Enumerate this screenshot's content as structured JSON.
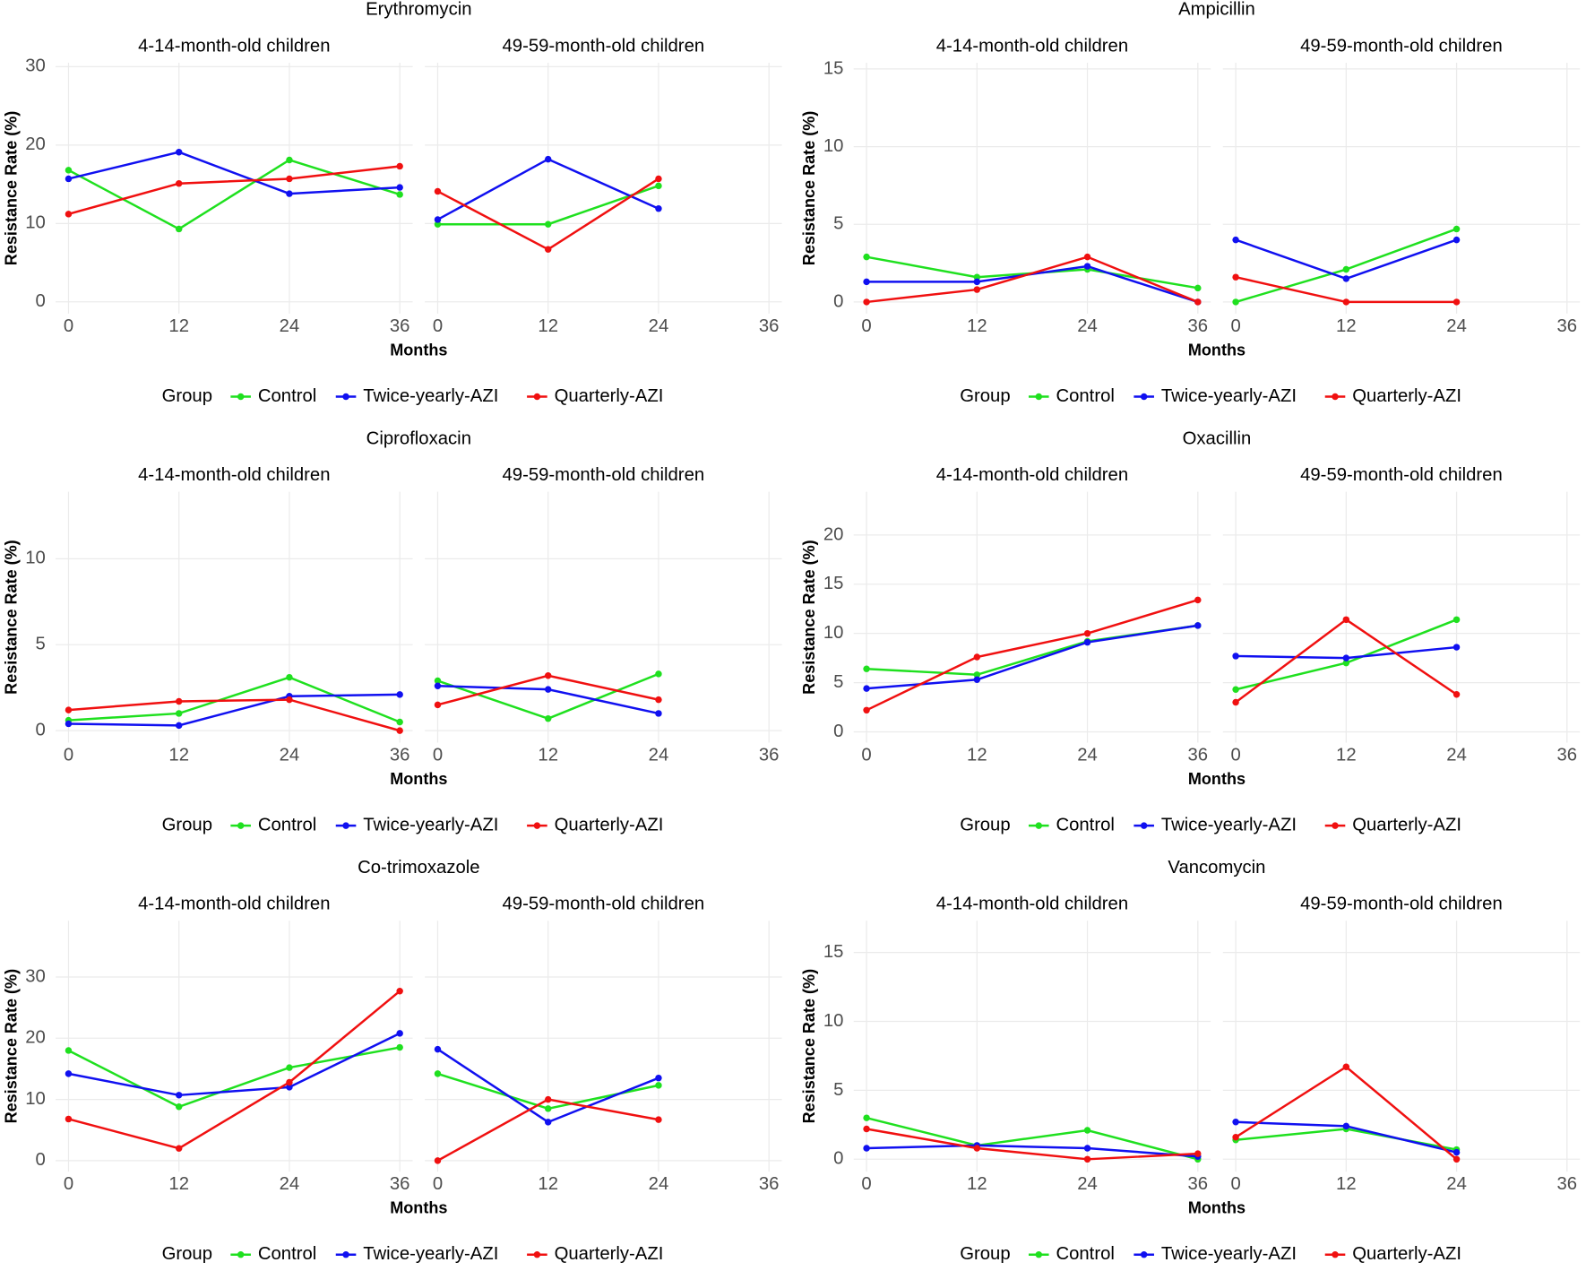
{
  "chart_data": [
    {
      "type": "line",
      "title": "Erythromycin",
      "facets": [
        "4-14-month-old children",
        "49-59-month-old children"
      ],
      "x": [
        0,
        12,
        24,
        36
      ],
      "xlim": [
        -1.4,
        37.4
      ],
      "xticks": [
        0,
        12,
        24,
        36
      ],
      "ylim": [
        -1.5,
        30.5
      ],
      "yticks": [
        0,
        10,
        20,
        30
      ],
      "x_label": "Months",
      "y_label": "Resistance Rate (%)",
      "legend_title": "Group",
      "grid": true,
      "series": [
        {
          "name": "Control",
          "color": "#1fe01f",
          "values": [
            [
              16.8,
              9.3,
              18.1,
              13.7
            ],
            [
              9.9,
              9.9,
              14.8,
              null
            ]
          ]
        },
        {
          "name": "Twice-yearly-AZI",
          "color": "#1010f0",
          "values": [
            [
              15.7,
              19.1,
              13.8,
              14.6
            ],
            [
              10.5,
              18.2,
              11.9,
              null
            ]
          ]
        },
        {
          "name": "Quarterly-AZI",
          "color": "#f01010",
          "values": [
            [
              11.2,
              15.1,
              15.7,
              17.3
            ],
            [
              14.1,
              6.7,
              15.7,
              null
            ]
          ]
        }
      ]
    },
    {
      "type": "line",
      "title": "Ampicillin",
      "facets": [
        "4-14-month-old children",
        "49-59-month-old children"
      ],
      "x": [
        0,
        12,
        24,
        36
      ],
      "xlim": [
        -1.4,
        37.4
      ],
      "xticks": [
        0,
        12,
        24,
        36
      ],
      "ylim": [
        -0.75,
        15.4
      ],
      "yticks": [
        0,
        5,
        10,
        15
      ],
      "x_label": "Months",
      "y_label": "Resistance Rate (%)",
      "legend_title": "Group",
      "grid": true,
      "series": [
        {
          "name": "Control",
          "color": "#1fe01f",
          "values": [
            [
              2.9,
              1.6,
              2.1,
              0.9
            ],
            [
              0,
              2.1,
              4.7,
              null
            ]
          ]
        },
        {
          "name": "Twice-yearly-AZI",
          "color": "#1010f0",
          "values": [
            [
              1.3,
              1.3,
              2.3,
              0
            ],
            [
              4.0,
              1.5,
              4.0,
              null
            ]
          ]
        },
        {
          "name": "Quarterly-AZI",
          "color": "#f01010",
          "values": [
            [
              0,
              0.8,
              2.9,
              0
            ],
            [
              1.6,
              0,
              0,
              null
            ]
          ]
        }
      ]
    },
    {
      "type": "line",
      "title": "Ciprofloxacin",
      "facets": [
        "4-14-month-old children",
        "49-59-month-old children"
      ],
      "x": [
        0,
        12,
        24,
        36
      ],
      "xlim": [
        -1.4,
        37.4
      ],
      "xticks": [
        0,
        12,
        24,
        36
      ],
      "ylim": [
        -0.7,
        13.9
      ],
      "yticks": [
        0,
        5,
        10
      ],
      "x_label": "Months",
      "y_label": "Resistance Rate (%)",
      "legend_title": "Group",
      "grid": true,
      "series": [
        {
          "name": "Control",
          "color": "#1fe01f",
          "values": [
            [
              0.6,
              1.0,
              3.1,
              0.5
            ],
            [
              2.9,
              0.7,
              3.3,
              null
            ]
          ]
        },
        {
          "name": "Twice-yearly-AZI",
          "color": "#1010f0",
          "values": [
            [
              0.4,
              0.3,
              2.0,
              2.1
            ],
            [
              2.6,
              2.4,
              1.0,
              null
            ]
          ]
        },
        {
          "name": "Quarterly-AZI",
          "color": "#f01010",
          "values": [
            [
              1.2,
              1.7,
              1.8,
              0
            ],
            [
              1.5,
              3.2,
              1.8,
              null
            ]
          ]
        }
      ]
    },
    {
      "type": "line",
      "title": "Oxacillin",
      "facets": [
        "4-14-month-old children",
        "49-59-month-old children"
      ],
      "x": [
        0,
        12,
        24,
        36
      ],
      "xlim": [
        -1.4,
        37.4
      ],
      "xticks": [
        0,
        12,
        24,
        36
      ],
      "ylim": [
        -1.1,
        24.4
      ],
      "yticks": [
        0,
        5,
        10,
        15,
        20
      ],
      "x_label": "Months",
      "y_label": "Resistance Rate (%)",
      "legend_title": "Group",
      "grid": true,
      "series": [
        {
          "name": "Control",
          "color": "#1fe01f",
          "values": [
            [
              6.4,
              5.8,
              9.2,
              10.8
            ],
            [
              4.3,
              7.0,
              11.4,
              null
            ]
          ]
        },
        {
          "name": "Twice-yearly-AZI",
          "color": "#1010f0",
          "values": [
            [
              4.4,
              5.3,
              9.1,
              10.8
            ],
            [
              7.7,
              7.5,
              8.6,
              null
            ]
          ]
        },
        {
          "name": "Quarterly-AZI",
          "color": "#f01010",
          "values": [
            [
              2.2,
              7.6,
              10.0,
              13.4
            ],
            [
              3.0,
              11.4,
              3.8,
              null
            ]
          ]
        }
      ]
    },
    {
      "type": "line",
      "title": "Co-trimoxazole",
      "facets": [
        "4-14-month-old children",
        "49-59-month-old children"
      ],
      "x": [
        0,
        12,
        24,
        36
      ],
      "xlim": [
        -1.4,
        37.4
      ],
      "xticks": [
        0,
        12,
        24,
        36
      ],
      "ylim": [
        -1.8,
        39.2
      ],
      "yticks": [
        0,
        10,
        20,
        30
      ],
      "x_label": "Months",
      "y_label": "Resistance Rate (%)",
      "legend_title": "Group",
      "grid": true,
      "series": [
        {
          "name": "Control",
          "color": "#1fe01f",
          "values": [
            [
              18.0,
              8.8,
              15.2,
              18.5
            ],
            [
              14.2,
              8.5,
              12.3,
              null
            ]
          ]
        },
        {
          "name": "Twice-yearly-AZI",
          "color": "#1010f0",
          "values": [
            [
              14.2,
              10.7,
              12.0,
              20.8
            ],
            [
              18.2,
              6.3,
              13.5,
              null
            ]
          ]
        },
        {
          "name": "Quarterly-AZI",
          "color": "#f01010",
          "values": [
            [
              6.8,
              2.0,
              12.8,
              27.7
            ],
            [
              0,
              10.0,
              6.7,
              null
            ]
          ]
        }
      ]
    },
    {
      "type": "line",
      "title": "Vancomycin",
      "facets": [
        "4-14-month-old children",
        "49-59-month-old children"
      ],
      "x": [
        0,
        12,
        24,
        36
      ],
      "xlim": [
        -1.4,
        37.4
      ],
      "xticks": [
        0,
        12,
        24,
        36
      ],
      "ylim": [
        -0.9,
        17.3
      ],
      "yticks": [
        0,
        5,
        10,
        15
      ],
      "x_label": "Months",
      "y_label": "Resistance Rate (%)",
      "legend_title": "Group",
      "grid": true,
      "series": [
        {
          "name": "Control",
          "color": "#1fe01f",
          "values": [
            [
              3.0,
              1.0,
              2.1,
              0
            ],
            [
              1.4,
              2.2,
              0.7,
              null
            ]
          ]
        },
        {
          "name": "Twice-yearly-AZI",
          "color": "#1010f0",
          "values": [
            [
              0.8,
              1.0,
              0.8,
              0.2
            ],
            [
              2.7,
              2.4,
              0.5,
              null
            ]
          ]
        },
        {
          "name": "Quarterly-AZI",
          "color": "#f01010",
          "values": [
            [
              2.2,
              0.8,
              0,
              0.4
            ],
            [
              1.6,
              6.7,
              0,
              null
            ]
          ]
        }
      ]
    }
  ]
}
